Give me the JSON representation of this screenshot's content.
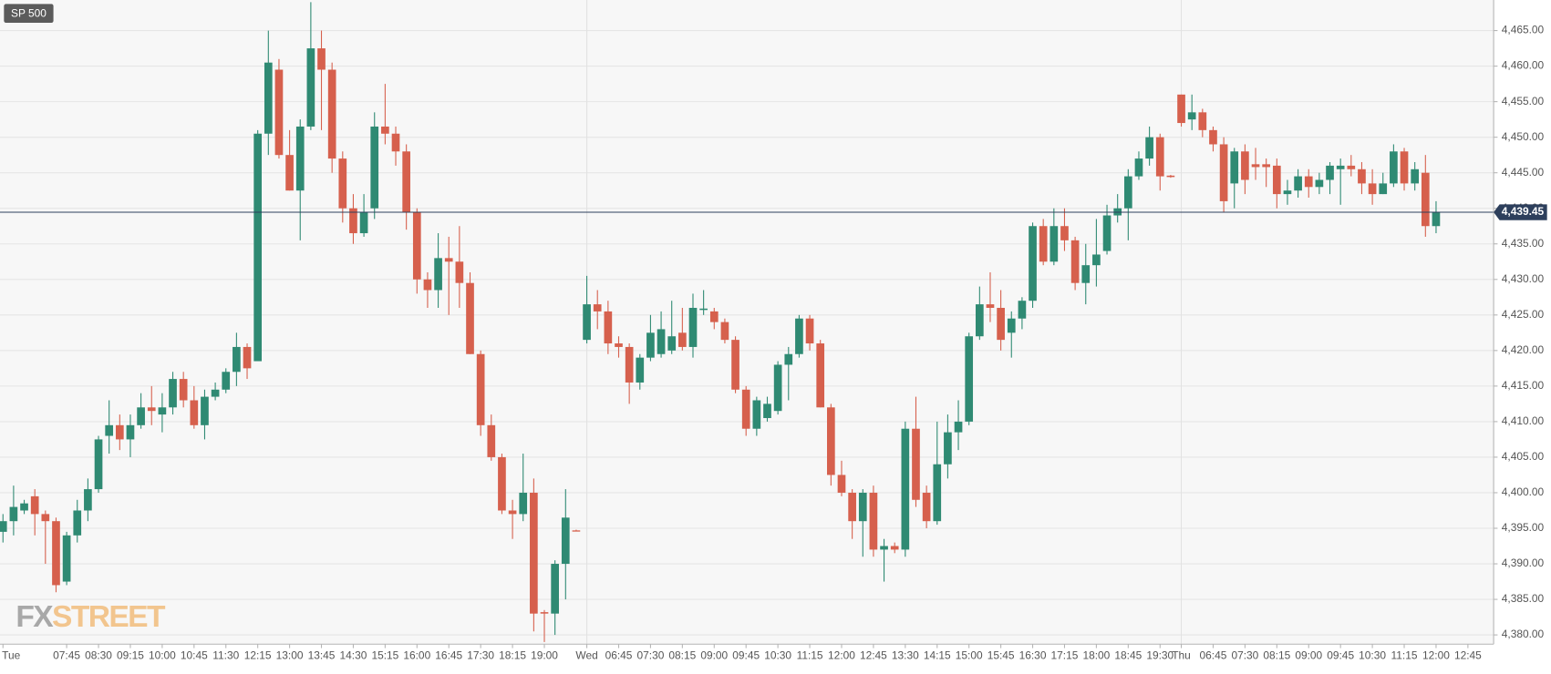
{
  "chart_data": {
    "type": "candlestick",
    "title": "SP 500",
    "watermark": [
      "FX",
      "STREET"
    ],
    "categories": [
      "Tue",
      null,
      null,
      null,
      null,
      null,
      "07:45",
      null,
      null,
      "08:30",
      null,
      null,
      "09:15",
      null,
      null,
      "10:00",
      null,
      null,
      "10:45",
      null,
      null,
      "11:30",
      null,
      null,
      "12:15",
      null,
      null,
      "13:00",
      null,
      null,
      "13:45",
      null,
      null,
      "14:30",
      null,
      null,
      "15:15",
      null,
      null,
      "16:00",
      null,
      null,
      "16:45",
      null,
      null,
      "17:30",
      null,
      null,
      "18:15",
      null,
      null,
      "19:00",
      null,
      null,
      null,
      "Wed",
      null,
      null,
      "06:45",
      null,
      null,
      "07:30",
      null,
      null,
      "08:15",
      null,
      null,
      "09:00",
      null,
      null,
      "09:45",
      null,
      null,
      "10:30",
      null,
      null,
      "11:15",
      null,
      null,
      "12:00",
      null,
      null,
      "12:45",
      null,
      null,
      "13:30",
      null,
      null,
      "14:15",
      null,
      null,
      "15:00",
      null,
      null,
      "15:45",
      null,
      null,
      "16:30",
      null,
      null,
      "17:15",
      null,
      null,
      "18:00",
      null,
      null,
      "18:45",
      null,
      null,
      "19:30",
      null,
      "Thu",
      null,
      null,
      "06:45",
      null,
      null,
      "07:30",
      null,
      null,
      "08:15",
      null,
      null,
      "09:00",
      null,
      null,
      "09:45",
      null,
      null,
      "10:30",
      null,
      null,
      "11:15",
      null,
      null,
      "12:00",
      null,
      null,
      "12:45"
    ],
    "open": [
      4394.5,
      4396,
      4397.5,
      4399.5,
      4397,
      4396,
      4387.5,
      4394,
      4397.5,
      4400.5,
      4408,
      4409.5,
      4407.5,
      4409.5,
      4412,
      4411,
      4412,
      4416,
      4413,
      4409.5,
      4413.5,
      4414.5,
      4417,
      4420.5,
      4418.5,
      4450.5,
      4459.5,
      4447.5,
      4442.5,
      4451.5,
      4462.5,
      4459.5,
      4447,
      4440,
      4436.5,
      4440,
      4451.5,
      4450.5,
      4448,
      4439.5,
      4430,
      4428.5,
      4433,
      4432.5,
      4429.5,
      4419.5,
      4409.5,
      4405,
      4397.5,
      4397,
      4400,
      4383.2,
      4383,
      4390,
      4394.7,
      4421.5,
      4426.5,
      4425.5,
      4421,
      4420.5,
      4415.5,
      4419,
      4419.5,
      4420,
      4422.5,
      4420.5,
      4425.7,
      4425.5,
      4424,
      4421.5,
      4414.5,
      4409,
      4410.5,
      4411.5,
      4418,
      4419.5,
      4424.5,
      4421,
      4412,
      4402.5,
      4400,
      4396,
      4400,
      4392,
      4392.5,
      4392,
      4409,
      4400,
      4396,
      4404,
      4408.5,
      4410,
      4422,
      4426.5,
      4426,
      4422.5,
      4424.5,
      4427,
      4437.5,
      4432.5,
      4437.5,
      4435.5,
      4429.5,
      4432,
      4434,
      4439,
      4440,
      4444.5,
      4447,
      4450,
      4444.6,
      4456,
      4452.5,
      4453.5,
      4451,
      4449,
      4443.5,
      4448,
      4446.2,
      4446.2,
      4446,
      4442,
      4442.5,
      4444.5,
      4443,
      4444,
      4445.5,
      4446,
      4445.5,
      4443.5,
      4442,
      4443.5,
      4448,
      4443.5,
      4445,
      4437.5,
      null,
      null,
      null
    ],
    "high": [
      4397,
      4401,
      4399,
      4400.5,
      4397.5,
      4396.5,
      4394.5,
      4399,
      4402,
      4408,
      4413,
      4411,
      4411,
      4414,
      4415,
      4414,
      4417,
      4417,
      4415,
      4414.5,
      4415.5,
      4417.5,
      4422.5,
      4421,
      4451,
      4465,
      4461,
      4451,
      4452.5,
      4469,
      4465,
      4460.5,
      4448,
      4442,
      4442,
      4453.5,
      4457.5,
      4451.5,
      4449,
      4440,
      4431,
      4436.5,
      4436,
      4437.5,
      4431,
      4420,
      4411,
      4405.5,
      4399,
      4405.5,
      4402,
      4383.5,
      4390.5,
      4400.5,
      4394.8,
      4430.5,
      4428.5,
      4427,
      4422,
      4421,
      4419.5,
      4425,
      4425.5,
      4427,
      4426,
      4428,
      4428.5,
      4426,
      4424.5,
      4422,
      4415,
      4413.5,
      4413.5,
      4418.5,
      4420.5,
      4425,
      4425,
      4421.5,
      4412.5,
      4404.5,
      4400.5,
      4400.5,
      4401,
      4393.5,
      4393,
      4410,
      4413.5,
      4401,
      4410,
      4411,
      4413,
      4422.5,
      4429,
      4431,
      4428.5,
      4425.5,
      4427.5,
      4438,
      4438.5,
      4440,
      4440,
      4436,
      4435,
      4438.5,
      4440.5,
      4442,
      4445.5,
      4448,
      4451.5,
      4450.5,
      4444.7,
      4456,
      4456,
      4454,
      4451.5,
      4450,
      4448.5,
      4449,
      4448.5,
      4447,
      4447,
      4444,
      4445.5,
      4445.5,
      4445,
      4446.5,
      4447,
      4447.5,
      4446.5,
      4445.5,
      4445,
      4449,
      4448.5,
      4446.5,
      4447.5,
      4441,
      null,
      null,
      null
    ],
    "low": [
      4393,
      4394,
      4397,
      4394,
      4390,
      4386,
      4387,
      4393,
      4396,
      4400,
      4405.5,
      4406,
      4405,
      4409,
      4409.5,
      4408.5,
      4411,
      4412,
      4409,
      4407.5,
      4413,
      4414,
      4415,
      4416,
      4418.5,
      4447.5,
      4447,
      4442.5,
      4435.5,
      4451,
      4451,
      4445,
      4438,
      4435,
      4436,
      4438.5,
      4449,
      4446,
      4437,
      4428,
      4426,
      4426,
      4425,
      4426,
      4419.5,
      4408,
      4404.5,
      4397,
      4393.5,
      4396,
      4380.5,
      4379,
      4380,
      4385,
      4394.6,
      4421,
      4423,
      4419.5,
      4419,
      4412.5,
      4414.5,
      4418.5,
      4419,
      4419.5,
      4420,
      4419,
      4425,
      4423,
      4421,
      4414,
      4408,
      4408,
      4410,
      4411,
      4413,
      4419,
      4420,
      4412,
      4401,
      4399.5,
      4393.5,
      4391,
      4391,
      4387.5,
      4391.5,
      4391,
      4398,
      4395,
      4395.5,
      4402,
      4406,
      4409.5,
      4421.5,
      4424,
      4420,
      4419,
      4423,
      4426,
      4432,
      4432,
      4434,
      4428.5,
      4426.5,
      4429,
      4433.5,
      4438,
      4435.5,
      4444,
      4446,
      4442.5,
      4444.3,
      4451.5,
      4451,
      4450,
      4448,
      4439.5,
      4440,
      4442,
      4444,
      4443,
      4440,
      4440.5,
      4441.5,
      4441.5,
      4442,
      4442,
      4440.5,
      4444.5,
      4442,
      4440.5,
      4442,
      4443,
      4442.5,
      4442.5,
      4436,
      4436.5,
      null,
      null,
      null
    ],
    "close": [
      4396,
      4398,
      4398.5,
      4397,
      4396,
      4387,
      4394,
      4397.5,
      4400.5,
      4407.5,
      4409.5,
      4407.5,
      4409.5,
      4412,
      4411.5,
      4412,
      4416,
      4413,
      4409.5,
      4413.5,
      4414.5,
      4417,
      4420.5,
      4417.5,
      4450.5,
      4460.5,
      4447.5,
      4442.5,
      4451.5,
      4462.5,
      4459.5,
      4447,
      4440,
      4436.5,
      4439.5,
      4451.5,
      4450.5,
      4448,
      4439.5,
      4430,
      4428.5,
      4433,
      4432.5,
      4429.5,
      4419.5,
      4409.5,
      4405,
      4397.5,
      4397,
      4400,
      4383,
      4383,
      4390,
      4396.5,
      4394.6,
      4426.5,
      4425.5,
      4421,
      4420.5,
      4415.5,
      4419,
      4422.5,
      4423,
      4422,
      4420.5,
      4426,
      4425.9,
      4424,
      4421.5,
      4414.5,
      4409,
      4413,
      4412.5,
      4418,
      4419.5,
      4424.5,
      4421,
      4412,
      4402.5,
      4400,
      4396,
      4400,
      4392,
      4392.5,
      4392,
      4409,
      4399,
      4396,
      4404,
      4408.5,
      4410,
      4422,
      4426.5,
      4426,
      4421.5,
      4424.5,
      4427,
      4437.5,
      4432.5,
      4437.5,
      4435.5,
      4429.5,
      4432,
      4433.5,
      4439,
      4440,
      4444.5,
      4447,
      4450,
      4444.5,
      4444.4,
      4452,
      4453.5,
      4451,
      4449,
      4441,
      4448,
      4444,
      4445.8,
      4445.8,
      4442,
      4442.5,
      4444.5,
      4443,
      4444,
      4446,
      4446,
      4445.5,
      4443.5,
      4442,
      4443.5,
      4448,
      4443.5,
      4445.5,
      4437.5,
      4439.5,
      null,
      null,
      null
    ],
    "up_color": "#2f8a73",
    "down_color": "#d6604d",
    "last_price": {
      "value": 4439.45,
      "label": "4,439.45"
    },
    "ylim": [
      4378.7,
      4469.3
    ],
    "yticks": [
      {
        "value": 4380,
        "label": "4,380.00"
      },
      {
        "value": 4385,
        "label": "4,385.00"
      },
      {
        "value": 4390,
        "label": "4,390.00"
      },
      {
        "value": 4395,
        "label": "4,395.00"
      },
      {
        "value": 4400,
        "label": "4,400.00"
      },
      {
        "value": 4405,
        "label": "4,405.00"
      },
      {
        "value": 4410,
        "label": "4,410.00"
      },
      {
        "value": 4415,
        "label": "4,415.00"
      },
      {
        "value": 4420,
        "label": "4,420.00"
      },
      {
        "value": 4425,
        "label": "4,425.00"
      },
      {
        "value": 4430,
        "label": "4,430.00"
      },
      {
        "value": 4435,
        "label": "4,435.00"
      },
      {
        "value": 4440,
        "label": "4,440.00"
      },
      {
        "value": 4445,
        "label": "4,445.00"
      },
      {
        "value": 4450,
        "label": "4,450.00"
      },
      {
        "value": 4455,
        "label": "4,455.00"
      },
      {
        "value": 4460,
        "label": "4,460.00"
      },
      {
        "value": 4465,
        "label": "4,465.00"
      }
    ],
    "grid": true
  }
}
